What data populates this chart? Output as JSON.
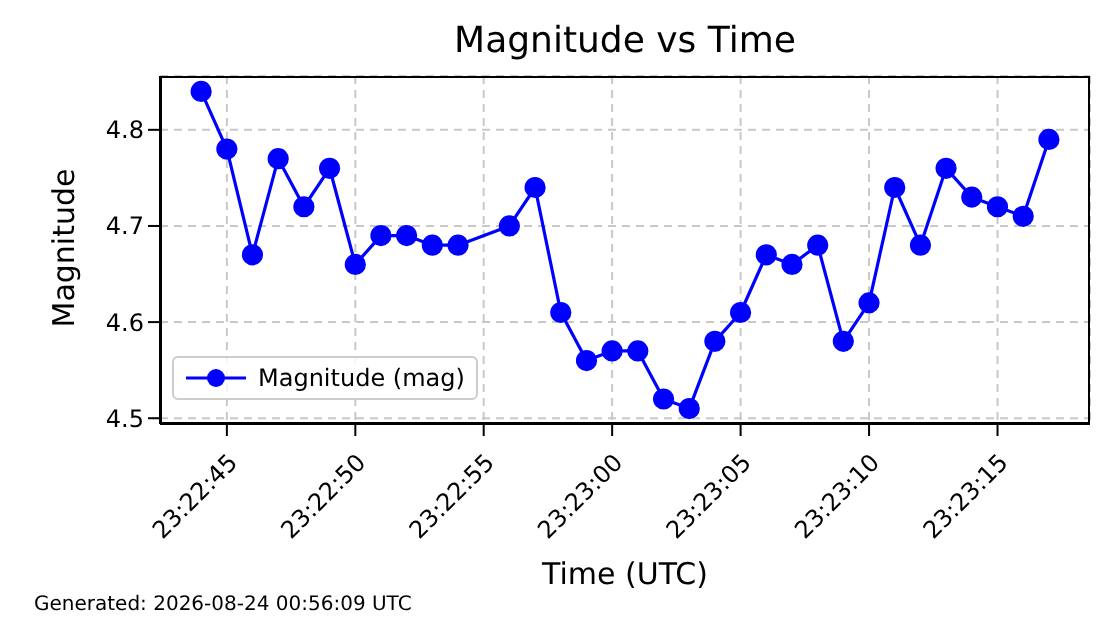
{
  "chart_data": {
    "type": "line",
    "title": "Magnitude vs Time",
    "xlabel": "Time (UTC)",
    "ylabel": "Magnitude",
    "annotations": [
      "Generated: 2026-08-24 00:56:09 UTC"
    ],
    "x": [
      23.378889,
      23.379167,
      23.379444,
      23.379722,
      23.38,
      23.380278,
      23.380556,
      23.380833,
      23.381111,
      23.381389,
      23.381667,
      23.382222,
      23.3825,
      23.382778,
      23.383056,
      23.383333,
      23.383611,
      23.383889,
      23.384167,
      23.384444,
      23.384722,
      23.385,
      23.385278,
      23.385556,
      23.385833,
      23.386111,
      23.386389,
      23.386667,
      23.386944,
      23.387222,
      23.3875,
      23.387778,
      23.388056
    ],
    "series": [
      {
        "name": "Magnitude (mag)",
        "color": "#0000ff",
        "values": [
          4.84,
          4.78,
          4.67,
          4.77,
          4.72,
          4.76,
          4.66,
          4.69,
          4.69,
          4.68,
          4.68,
          4.7,
          4.74,
          4.61,
          4.56,
          4.57,
          4.57,
          4.52,
          4.51,
          4.58,
          4.61,
          4.67,
          4.66,
          4.68,
          4.58,
          4.62,
          4.74,
          4.68,
          4.76,
          4.73,
          4.72,
          4.71,
          4.79
        ]
      }
    ],
    "xlim": [
      23.378444,
      23.3885
    ],
    "xticks": [
      {
        "value": 23.379167,
        "label": "23:22:45"
      },
      {
        "value": 23.380556,
        "label": "23:22:50"
      },
      {
        "value": 23.381944,
        "label": "23:22:55"
      },
      {
        "value": 23.383333,
        "label": "23:23:00"
      },
      {
        "value": 23.384722,
        "label": "23:23:05"
      },
      {
        "value": 23.386111,
        "label": "23:23:10"
      },
      {
        "value": 23.3875,
        "label": "23:23:15"
      }
    ],
    "ylim": [
      4.494,
      4.856
    ],
    "yticks": [
      {
        "value": 4.5,
        "label": "4.5"
      },
      {
        "value": 4.6,
        "label": "4.6"
      },
      {
        "value": 4.7,
        "label": "4.7"
      },
      {
        "value": 4.8,
        "label": "4.8"
      }
    ],
    "grid": true,
    "legend": "lower left",
    "marker": "circle",
    "line_style": "solid"
  }
}
